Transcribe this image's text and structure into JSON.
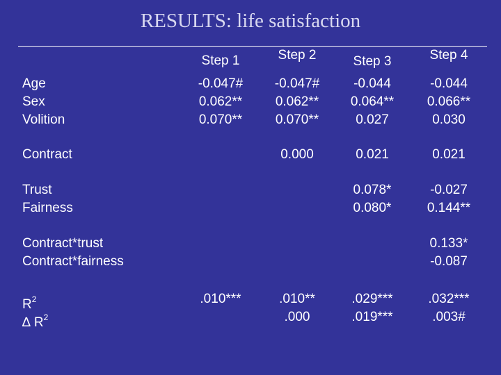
{
  "title": "RESULTS: life satisfaction",
  "steps": [
    "Step 1",
    "Step 2",
    "Step 3",
    "Step 4"
  ],
  "blocks": {
    "demographics": {
      "labels": [
        "Age",
        "Sex",
        "Volition"
      ],
      "step1": [
        "-0.047#",
        "0.062**",
        "0.070**"
      ],
      "step2": [
        "-0.047#",
        "0.062**",
        "0.070**"
      ],
      "step3": [
        "-0.044",
        "0.064**",
        "0.027"
      ],
      "step4": [
        "-0.044",
        "0.066**",
        "0.030"
      ]
    },
    "contract": {
      "label": "Contract",
      "step2": "0.000",
      "step3": "0.021",
      "step4": "0.021"
    },
    "trust_fairness": {
      "labels": [
        "Trust",
        "Fairness"
      ],
      "step3": [
        "0.078*",
        "0.080*"
      ],
      "step4": [
        "-0.027",
        "0.144**"
      ]
    },
    "interactions": {
      "labels": [
        "Contract*trust",
        "Contract*fairness"
      ],
      "step4": [
        "0.133*",
        "-0.087"
      ]
    },
    "fit": {
      "r2_label": "R",
      "r2_sup": "2",
      "dr2_label": "∆ R",
      "dr2_sup": "2",
      "step1": [
        ".010***",
        ""
      ],
      "step2": [
        ".010**",
        ".000"
      ],
      "step3": [
        ".029***",
        ".019***"
      ],
      "step4": [
        ".032***",
        ".003#"
      ]
    }
  }
}
